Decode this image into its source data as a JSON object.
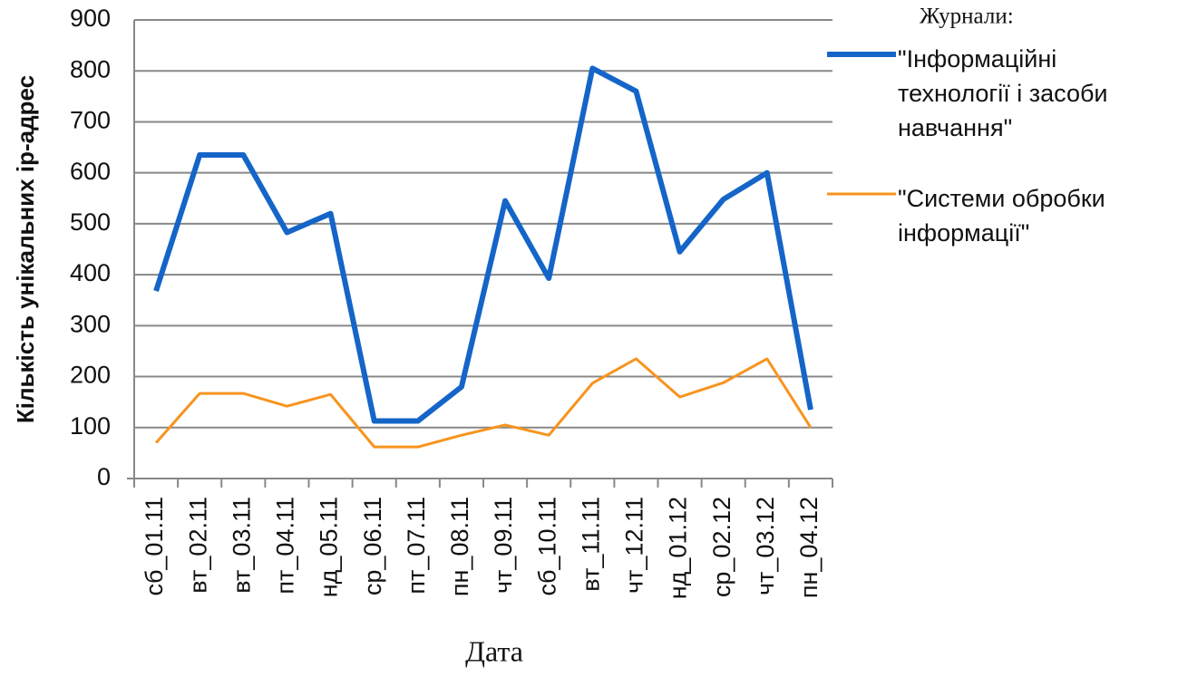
{
  "chart_data": {
    "type": "line",
    "x_label": "Дата",
    "y_label": "Кількість унікальних ip-адрес",
    "legend_title": "Журнали:",
    "categories": [
      "сб_01.11",
      "вт_02.11",
      "вт_03.11",
      "пт_04.11",
      "нд_05.11",
      "ср_06.11",
      "пт_07.11",
      "пн_08.11",
      "чт_09.11",
      "сб_10.11",
      "вт_11.11",
      "чт_12.11",
      "нд_01.12",
      "ср_02.12",
      "чт_03.12",
      "пн_04.12"
    ],
    "series": [
      {
        "name": "\"Інформаційні технології і засоби навчання\"",
        "color": "#1565c8",
        "values": [
          368,
          635,
          635,
          483,
          520,
          113,
          113,
          180,
          545,
          393,
          805,
          760,
          445,
          548,
          600,
          135
        ]
      },
      {
        "name": "\"Системи обробки інформації\"",
        "color": "#f7941d",
        "values": [
          70,
          167,
          167,
          142,
          165,
          62,
          62,
          85,
          105,
          85,
          187,
          235,
          160,
          188,
          235,
          100
        ]
      }
    ],
    "ylim": [
      0,
      900
    ],
    "yticks": [
      0,
      100,
      200,
      300,
      400,
      500,
      600,
      700,
      800,
      900
    ],
    "grid": true,
    "legend": "right"
  }
}
